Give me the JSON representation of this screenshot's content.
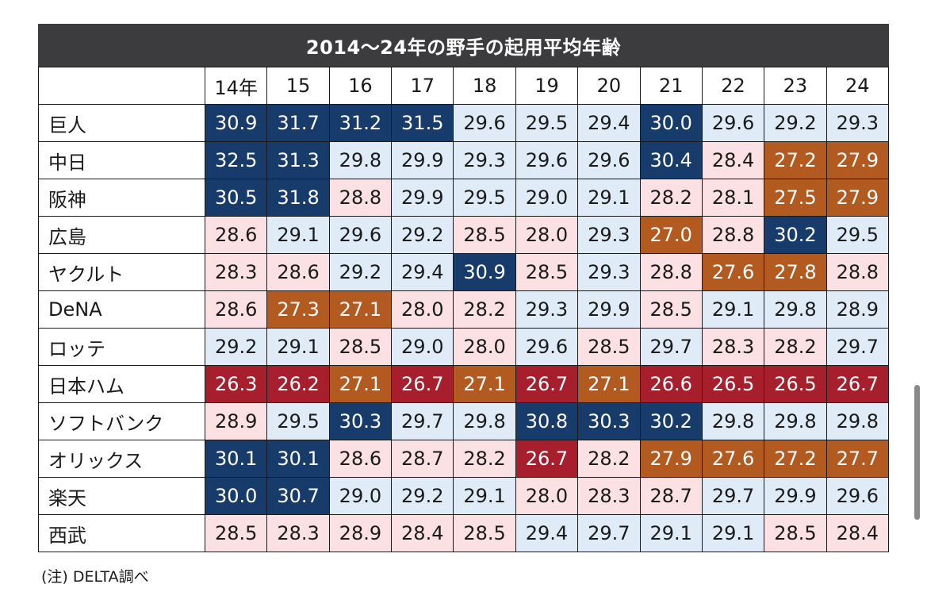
{
  "colors": {
    "header_bg": "#3c3c3e",
    "navy": "#173c6b",
    "light_blue": "#dfebf7",
    "pink": "#fbe0e4",
    "orange": "#b35a21",
    "red": "#a71f2d"
  },
  "note": "(注) DELTA調べ",
  "chart_data": {
    "type": "table",
    "title": "2014～24年の野手の起用平均年齢",
    "columns": [
      "14年",
      "15",
      "16",
      "17",
      "18",
      "19",
      "20",
      "21",
      "22",
      "23",
      "24"
    ],
    "rows": [
      {
        "team": "巨人",
        "values": [
          "30.9",
          "31.7",
          "31.2",
          "31.5",
          "29.6",
          "29.5",
          "29.4",
          "30.0",
          "29.6",
          "29.2",
          "29.3"
        ],
        "colors": [
          "navy",
          "navy",
          "navy",
          "navy",
          "light",
          "light",
          "light",
          "navy",
          "light",
          "light",
          "light"
        ]
      },
      {
        "team": "中日",
        "values": [
          "32.5",
          "31.3",
          "29.8",
          "29.9",
          "29.3",
          "29.6",
          "29.6",
          "30.4",
          "28.4",
          "27.2",
          "27.9"
        ],
        "colors": [
          "navy",
          "navy",
          "light",
          "light",
          "light",
          "light",
          "light",
          "navy",
          "pink",
          "orange",
          "orange"
        ]
      },
      {
        "team": "阪神",
        "values": [
          "30.5",
          "31.8",
          "28.8",
          "29.9",
          "29.5",
          "29.0",
          "29.1",
          "28.2",
          "28.1",
          "27.5",
          "27.9"
        ],
        "colors": [
          "navy",
          "navy",
          "pink",
          "light",
          "light",
          "light",
          "light",
          "pink",
          "pink",
          "orange",
          "orange"
        ]
      },
      {
        "team": "広島",
        "values": [
          "28.6",
          "29.1",
          "29.6",
          "29.2",
          "28.5",
          "28.0",
          "29.3",
          "27.0",
          "28.8",
          "30.2",
          "29.5"
        ],
        "colors": [
          "pink",
          "light",
          "light",
          "light",
          "pink",
          "pink",
          "light",
          "orange",
          "pink",
          "navy",
          "light"
        ]
      },
      {
        "team": "ヤクルト",
        "values": [
          "28.3",
          "28.6",
          "29.2",
          "29.4",
          "30.9",
          "28.5",
          "29.3",
          "28.8",
          "27.6",
          "27.8",
          "28.8"
        ],
        "colors": [
          "pink",
          "pink",
          "light",
          "light",
          "navy",
          "pink",
          "light",
          "pink",
          "orange",
          "orange",
          "pink"
        ]
      },
      {
        "team": "DeNA",
        "values": [
          "28.6",
          "27.3",
          "27.1",
          "28.0",
          "28.2",
          "29.3",
          "29.9",
          "28.5",
          "29.1",
          "29.8",
          "28.9"
        ],
        "colors": [
          "pink",
          "orange",
          "orange",
          "pink",
          "pink",
          "light",
          "light",
          "pink",
          "light",
          "light",
          "light"
        ]
      },
      {
        "team": "ロッテ",
        "values": [
          "29.2",
          "29.1",
          "28.5",
          "29.0",
          "28.0",
          "29.6",
          "28.5",
          "29.7",
          "28.3",
          "28.2",
          "29.7"
        ],
        "colors": [
          "light",
          "light",
          "pink",
          "light",
          "pink",
          "light",
          "pink",
          "light",
          "pink",
          "pink",
          "light"
        ]
      },
      {
        "team": "日本ハム",
        "values": [
          "26.3",
          "26.2",
          "27.1",
          "26.7",
          "27.1",
          "26.7",
          "27.1",
          "26.6",
          "26.5",
          "26.5",
          "26.7"
        ],
        "colors": [
          "red",
          "red",
          "orange",
          "red",
          "orange",
          "red",
          "orange",
          "red",
          "red",
          "red",
          "red"
        ]
      },
      {
        "team": "ソフトバンク",
        "values": [
          "28.9",
          "29.5",
          "30.3",
          "29.7",
          "29.8",
          "30.8",
          "30.3",
          "30.2",
          "29.8",
          "29.8",
          "29.8"
        ],
        "colors": [
          "pink",
          "light",
          "navy",
          "light",
          "light",
          "navy",
          "navy",
          "navy",
          "light",
          "light",
          "light"
        ]
      },
      {
        "team": "オリックス",
        "values": [
          "30.1",
          "30.1",
          "28.6",
          "28.7",
          "28.2",
          "26.7",
          "28.2",
          "27.9",
          "27.6",
          "27.2",
          "27.7"
        ],
        "colors": [
          "navy",
          "navy",
          "pink",
          "pink",
          "pink",
          "red",
          "pink",
          "orange",
          "orange",
          "orange",
          "orange"
        ]
      },
      {
        "team": "楽天",
        "values": [
          "30.0",
          "30.7",
          "29.0",
          "29.2",
          "29.1",
          "28.0",
          "28.3",
          "28.7",
          "29.7",
          "29.9",
          "29.6"
        ],
        "colors": [
          "navy",
          "navy",
          "light",
          "light",
          "light",
          "pink",
          "pink",
          "pink",
          "light",
          "light",
          "light"
        ]
      },
      {
        "team": "西武",
        "values": [
          "28.5",
          "28.3",
          "28.9",
          "28.4",
          "28.5",
          "29.4",
          "29.7",
          "29.1",
          "29.1",
          "28.5",
          "28.4"
        ],
        "colors": [
          "pink",
          "pink",
          "pink",
          "pink",
          "pink",
          "light",
          "light",
          "light",
          "light",
          "pink",
          "pink"
        ]
      }
    ]
  }
}
